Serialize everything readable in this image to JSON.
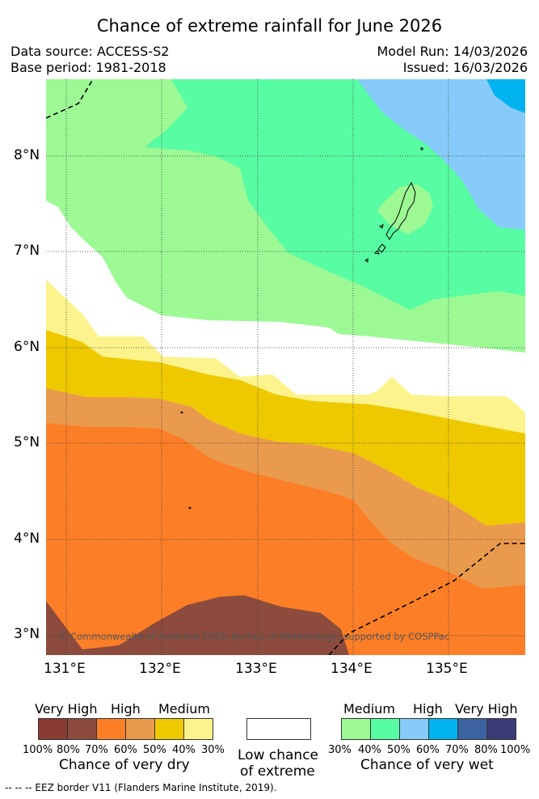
{
  "title": "Chance of extreme rainfall for June 2026",
  "meta": {
    "data_source": "Data source: ACCESS-S2",
    "base_period": "Base period: 1981-2018",
    "model_run": "Model Run: 14/03/2026",
    "issued": "Issued: 16/03/2026"
  },
  "map": {
    "lat_labels": [
      "8°N",
      "7°N",
      "6°N",
      "5°N",
      "4°N",
      "3°N"
    ],
    "lon_labels": [
      "131°E",
      "132°E",
      "133°E",
      "134°E",
      "135°E"
    ],
    "copyright": "© Commonwealth of Australia 2026, Bureau of Meteorology, supported by COSPPac",
    "region": "Palau"
  },
  "legend": {
    "dry": {
      "headers": {
        "very_high": "Very High",
        "high": "High",
        "medium": "Medium"
      },
      "percent_labels": [
        "100%",
        "80%",
        "70%",
        "60%",
        "50%",
        "40%",
        "30%"
      ],
      "colors": [
        "#8b3a32",
        "#8c4b3c",
        "#fc7e26",
        "#ea9a4c",
        "#eec900",
        "#fcf38c"
      ],
      "caption": "Chance of very dry"
    },
    "low": {
      "line1": "Low chance",
      "line2": "of extreme",
      "color": "#ffffff"
    },
    "wet": {
      "headers": {
        "medium": "Medium",
        "high": "High",
        "very_high": "Very High"
      },
      "percent_labels": [
        "30%",
        "40%",
        "50%",
        "60%",
        "70%",
        "80%",
        "100%"
      ],
      "colors": [
        "#9cf994",
        "#58fca2",
        "#86cbfa",
        "#00b3f0",
        "#3d62a2",
        "#3c3b78"
      ],
      "caption": "Chance of very wet"
    }
  },
  "footnote": "--  --  -- EEZ border V11 (Flanders Marine Institute, 2019)."
}
